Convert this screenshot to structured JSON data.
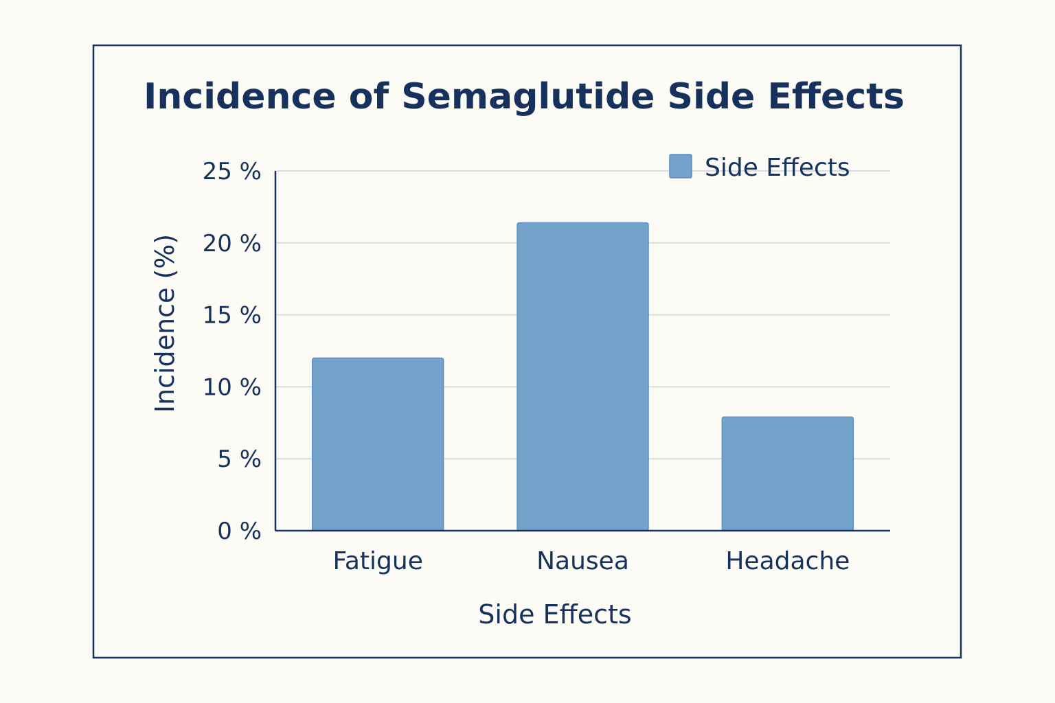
{
  "chart_data": {
    "type": "bar",
    "title": "Incidence of Semaglutide Side Effects",
    "xlabel": "Side Effects",
    "ylabel": "Incidence (%)",
    "categories": [
      "Fatigue",
      "Nausea",
      "Headache"
    ],
    "series": [
      {
        "name": "Side Effects",
        "values": [
          12,
          21.4,
          7.9
        ]
      }
    ],
    "ylim": [
      0,
      25
    ],
    "yticks": [
      0,
      5,
      10,
      15,
      20,
      25
    ],
    "ytick_labels": [
      "0 %",
      "5 %",
      "10 %",
      "15 %",
      "20 %",
      "25 %"
    ],
    "grid": true,
    "legend": "top-right",
    "colors": {
      "bar": "#73a3cb",
      "bar_edge": "#5b8fc0",
      "text": "#16325c",
      "axis": "#16325c",
      "grid": "#d7dde6",
      "frame": "#16325c"
    }
  }
}
